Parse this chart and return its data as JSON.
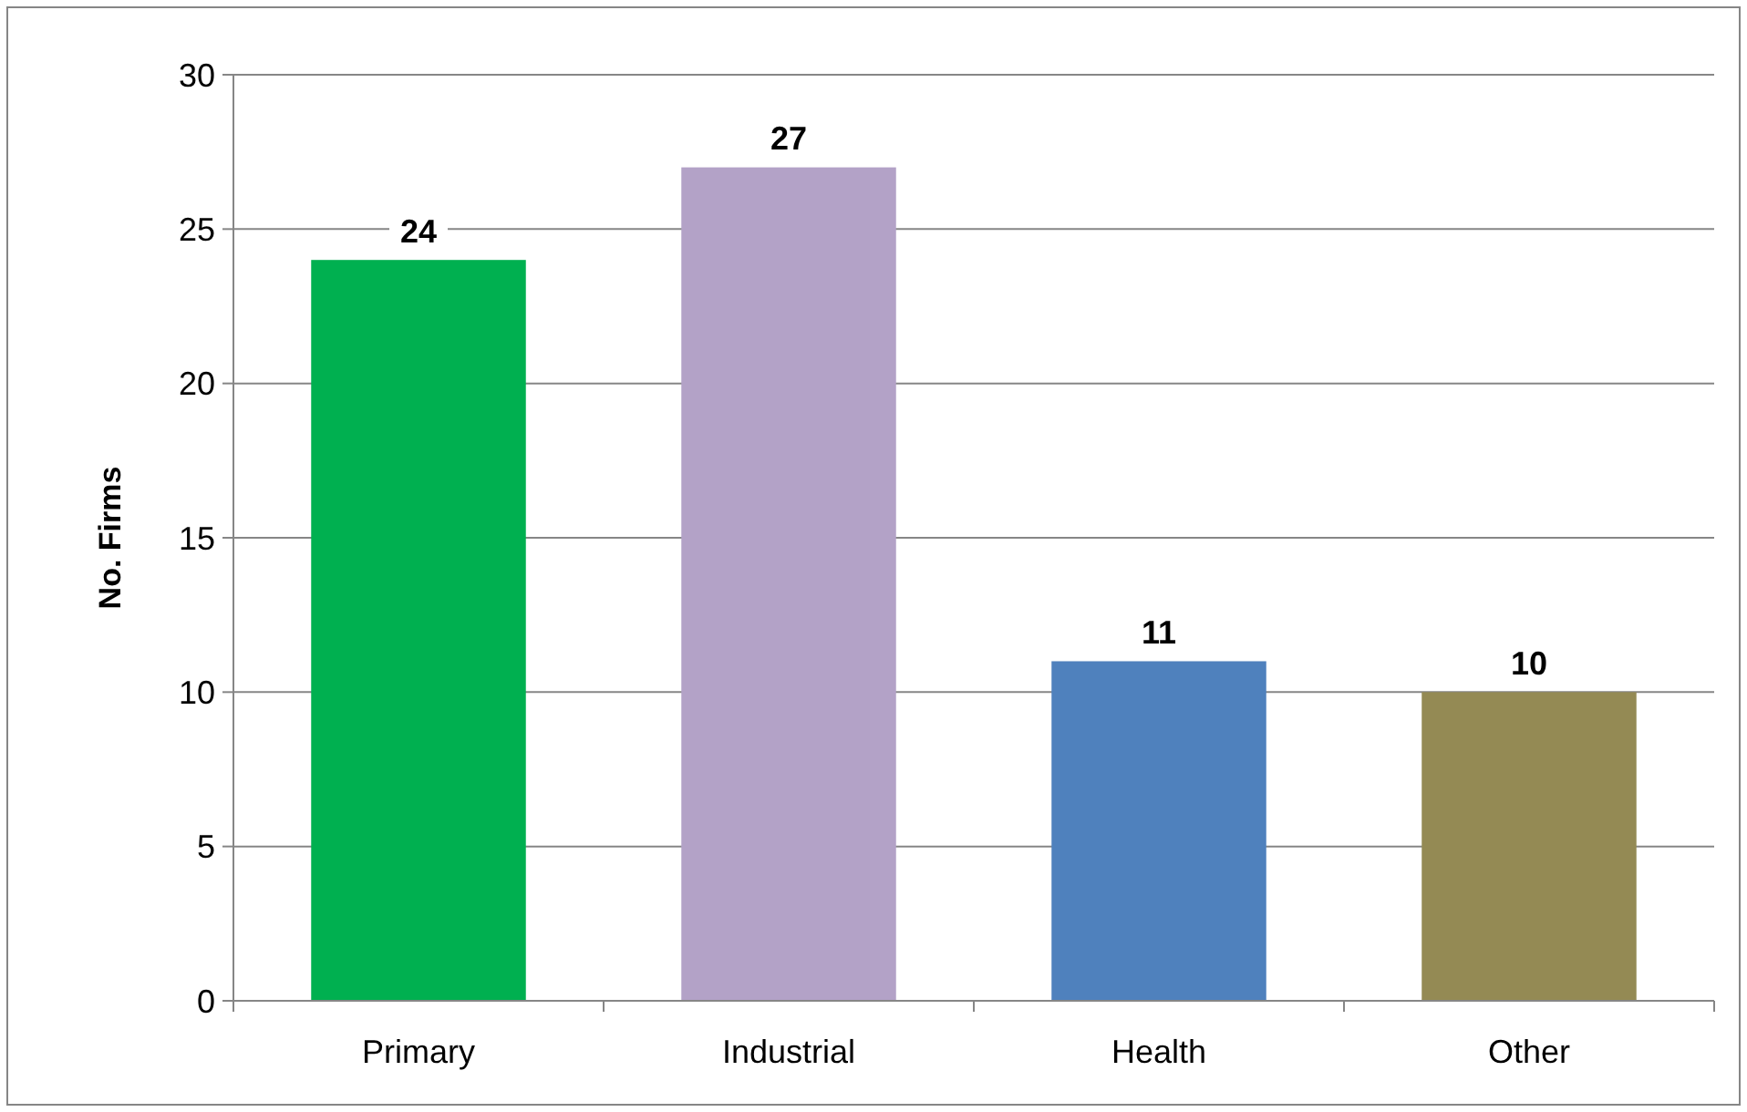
{
  "chart_data": {
    "type": "bar",
    "ylabel": "No. Firms",
    "categories": [
      "Primary",
      "Industrial",
      "Health",
      "Other"
    ],
    "values": [
      24,
      27,
      11,
      10
    ],
    "colors": [
      "#00b050",
      "#b3a2c7",
      "#4f81bd",
      "#948a54"
    ],
    "ylim": [
      0,
      30
    ],
    "yticks": [
      0,
      5,
      10,
      15,
      20,
      25,
      30
    ],
    "grid": "y",
    "data_labels": true
  }
}
